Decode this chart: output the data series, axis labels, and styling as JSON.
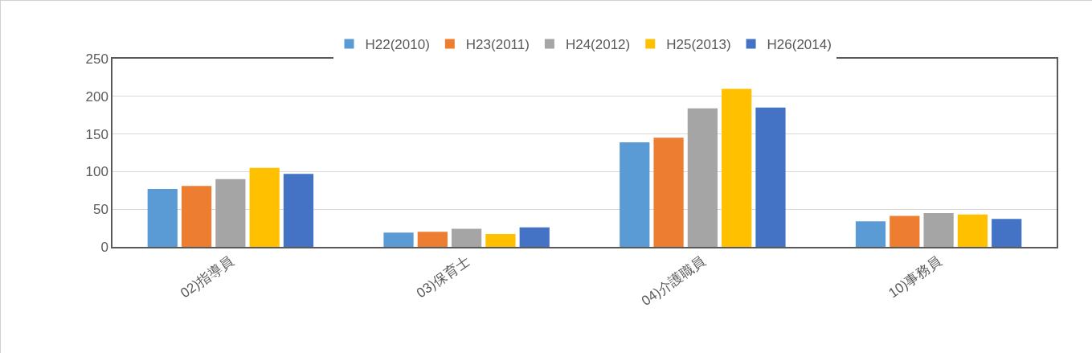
{
  "chart_data": {
    "type": "bar",
    "categories": [
      "02)指導員",
      "03)保育士",
      "04)介護職員",
      "10)事務員"
    ],
    "series": [
      {
        "name": "H22(2010)",
        "color": "#5b9bd5",
        "values": [
          77,
          19,
          139,
          34
        ]
      },
      {
        "name": "H23(2011)",
        "color": "#ed7d31",
        "values": [
          81,
          20,
          145,
          41
        ]
      },
      {
        "name": "H24(2012)",
        "color": "#a5a5a5",
        "values": [
          90,
          24,
          184,
          45
        ]
      },
      {
        "name": "H25(2013)",
        "color": "#ffc000",
        "values": [
          105,
          17,
          210,
          43
        ]
      },
      {
        "name": "H26(2014)",
        "color": "#4472c4",
        "values": [
          97,
          26,
          185,
          37
        ]
      }
    ],
    "ylim": [
      0,
      250
    ],
    "yticks": [
      0,
      50,
      100,
      150,
      200,
      250
    ],
    "grid": "y",
    "legend": "top"
  }
}
